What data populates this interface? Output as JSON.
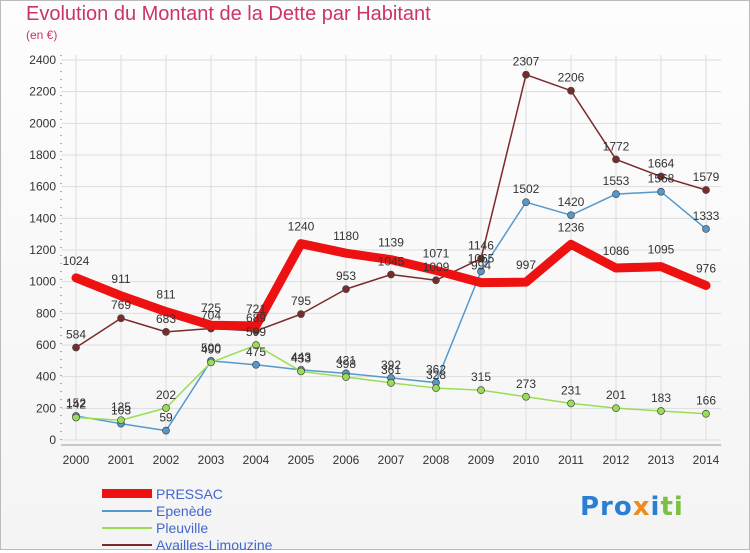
{
  "chart_data": {
    "type": "line",
    "title": "Evolution du Montant de la Dette par Habitant",
    "subtitle": "(en €)",
    "x": [
      "2000",
      "2001",
      "2002",
      "2003",
      "2004",
      "2005",
      "2006",
      "2007",
      "2008",
      "2009",
      "2010",
      "2011",
      "2012",
      "2013",
      "2014"
    ],
    "ylim": [
      0,
      2400
    ],
    "yticks": [
      0,
      200,
      400,
      600,
      800,
      1000,
      1200,
      1400,
      1600,
      1800,
      2000,
      2200,
      2400
    ],
    "grid": true,
    "legend_position": "bottom-left",
    "series": [
      {
        "name": "Availles-Limouzine",
        "color": "#7a2a2a",
        "values": [
          584,
          769,
          683,
          704,
          689,
          795,
          953,
          1045,
          1009,
          1146,
          2307,
          2206,
          1772,
          1664,
          1579
        ]
      },
      {
        "name": "Epenède",
        "color": "#5599cc",
        "values": [
          152,
          103,
          59,
          500,
          475,
          443,
          421,
          392,
          362,
          1065,
          1502,
          1420,
          1553,
          1568,
          1333
        ]
      },
      {
        "name": "Pleuville",
        "color": "#99dd55",
        "values": [
          142,
          125,
          202,
          490,
          599,
          433,
          398,
          361,
          328,
          315,
          273,
          231,
          201,
          183,
          166
        ]
      },
      {
        "name": "PRESSAC",
        "color": "#ee1111",
        "values": [
          1024,
          911,
          811,
          725,
          721,
          1240,
          1180,
          1139,
          1071,
          994,
          997,
          1236,
          1086,
          1095,
          976
        ]
      }
    ]
  },
  "legend": {
    "items": [
      {
        "label": "PRESSAC",
        "color": "#ee1111"
      },
      {
        "label": "Epenède",
        "color": "#5599cc"
      },
      {
        "label": "Pleuville",
        "color": "#99dd55"
      },
      {
        "label": "Availles-Limouzine",
        "color": "#7a2a2a"
      }
    ]
  },
  "logo": {
    "text": "Proxiti"
  }
}
